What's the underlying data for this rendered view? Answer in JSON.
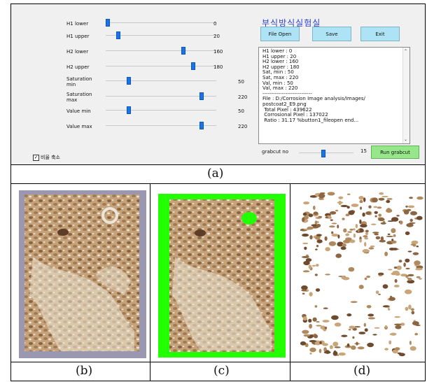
{
  "app": {
    "title": "부식방식실험실",
    "buttons": {
      "file_open": "File Open",
      "save": "Save",
      "exit": "Exit"
    },
    "checkbox_label": "비율 축소",
    "checkbox_checked": true
  },
  "sliders": [
    {
      "label": "H1 lower",
      "value": "0",
      "fraction": 0.0
    },
    {
      "label": "H1 upper",
      "value": "20",
      "fraction": 0.1
    },
    {
      "label": "H2 lower",
      "value": "160",
      "fraction": 0.71
    },
    {
      "label": "H2 upper",
      "value": "180",
      "fraction": 0.8
    },
    {
      "label": "Saturation\nmin",
      "value": "50",
      "fraction": 0.2
    },
    {
      "label": "Saturation\nmax",
      "value": "220",
      "fraction": 0.88
    },
    {
      "label": "Value min",
      "value": "50",
      "fraction": 0.2
    },
    {
      "label": "Value max",
      "value": "220",
      "fraction": 0.88
    }
  ],
  "log": {
    "lines": [
      "H1 lower : 0",
      "H1 upper : 20",
      "H2 lower : 160",
      "H2 upper : 180",
      "Sat, min : 50",
      "Sat, max : 220",
      "Val, min : 50",
      "Val, max : 220",
      "----------------------------",
      "File : D:/Corrosion Image analysis/Images/",
      "postcoat2_E9.png",
      " Total Pixel : 439622",
      " Corrosional Pixel : 137022",
      " Ratio : 31.17 %button1_fileopen end..."
    ]
  },
  "grabcut": {
    "label": "grabcut no",
    "value": "15",
    "fraction": 0.45,
    "button": "Run grabcut",
    "button_color": "#96e68a"
  },
  "captions": {
    "a": "(a)",
    "b": "(b)",
    "c": "(c)",
    "d": "(d)"
  },
  "colors": {
    "mask_green": "#22ff00",
    "thumb_blue": "#1874e8",
    "title_blue": "#2840c8"
  }
}
